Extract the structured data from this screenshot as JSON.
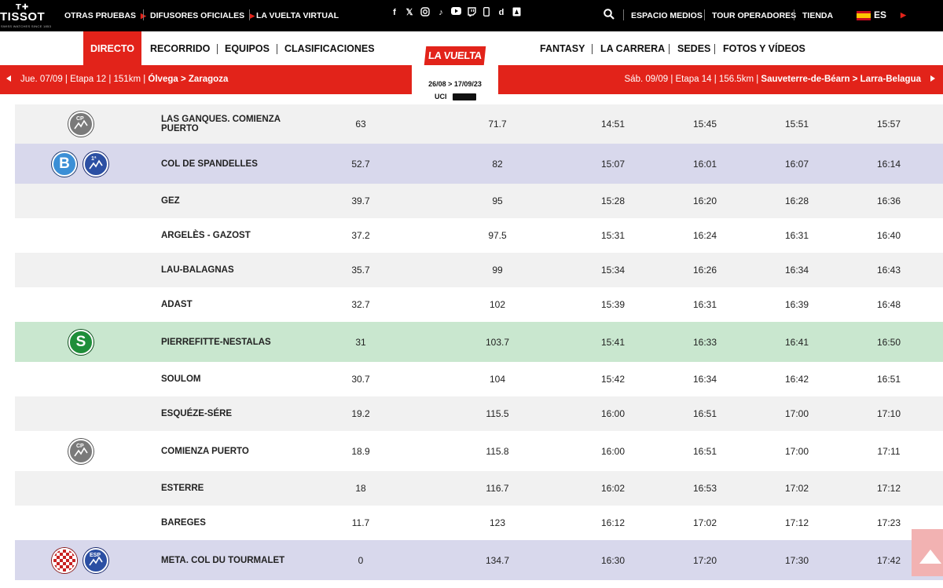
{
  "topbar": {
    "brand": "TISSOT",
    "brand_tag": "SWISS WATCHES SINCE 1853",
    "links": [
      "OTRAS PRUEBAS",
      "DIFUSORES OFICIALES",
      "LA VUELTA VIRTUAL"
    ],
    "social_icons": [
      "facebook-icon",
      "x-icon",
      "instagram-icon",
      "tiktok-icon",
      "youtube-icon",
      "twitch-icon",
      "mobile-icon",
      "dailymotion-icon",
      "strava-icon"
    ],
    "right_links": [
      "ESPACIO MEDIOS",
      "TOUR OPERADORES",
      "TIENDA"
    ],
    "language": "ES"
  },
  "nav": {
    "left": [
      "DIRECTO",
      "RECORRIDO",
      "EQUIPOS",
      "CLASIFICACIONES"
    ],
    "right": [
      "FANTASY",
      "LA CARRERA",
      "SEDES",
      "FOTOS Y VÍDEOS"
    ],
    "active": "DIRECTO"
  },
  "logo": {
    "name": "LA VUELTA",
    "dates": "26/08 > 17/09/23",
    "uci": "UCI"
  },
  "stagebar": {
    "prev_info": "Jue. 07/09 | Etapa 12 | 151km | ",
    "prev_route": "Ólvega > Zaragoza",
    "next_info": "Sáb. 09/09 | Etapa 14 | 156.5km | ",
    "next_route": "Sauveterre-de-Béarn > Larra-Belagua"
  },
  "rows": [
    {
      "style": "grey",
      "icons": [
        "cp"
      ],
      "name": "LAS GANQUES. COMIENZA PUERTO",
      "km_left": "63",
      "km_done": "71.7",
      "t1": "14:51",
      "t2": "15:45",
      "t3": "15:51",
      "t4": "15:57"
    },
    {
      "style": "purple",
      "icons": [
        "b",
        "cat1"
      ],
      "name": "COL DE SPANDELLES",
      "km_left": "52.7",
      "km_done": "82",
      "t1": "15:07",
      "t2": "16:01",
      "t3": "16:07",
      "t4": "16:14"
    },
    {
      "style": "grey",
      "icons": [],
      "name": "GEZ",
      "km_left": "39.7",
      "km_done": "95",
      "t1": "15:28",
      "t2": "16:20",
      "t3": "16:28",
      "t4": "16:36"
    },
    {
      "style": "white",
      "icons": [],
      "name": "ARGELÈS - GAZOST",
      "km_left": "37.2",
      "km_done": "97.5",
      "t1": "15:31",
      "t2": "16:24",
      "t3": "16:31",
      "t4": "16:40"
    },
    {
      "style": "grey",
      "icons": [],
      "name": "LAU-BALAGNAS",
      "km_left": "35.7",
      "km_done": "99",
      "t1": "15:34",
      "t2": "16:26",
      "t3": "16:34",
      "t4": "16:43"
    },
    {
      "style": "white",
      "icons": [],
      "name": "ADAST",
      "km_left": "32.7",
      "km_done": "102",
      "t1": "15:39",
      "t2": "16:31",
      "t3": "16:39",
      "t4": "16:48"
    },
    {
      "style": "green",
      "icons": [
        "s"
      ],
      "name": "PIERREFITTE-NESTALAS",
      "km_left": "31",
      "km_done": "103.7",
      "t1": "15:41",
      "t2": "16:33",
      "t3": "16:41",
      "t4": "16:50"
    },
    {
      "style": "white",
      "icons": [],
      "name": "SOULOM",
      "km_left": "30.7",
      "km_done": "104",
      "t1": "15:42",
      "t2": "16:34",
      "t3": "16:42",
      "t4": "16:51"
    },
    {
      "style": "grey",
      "icons": [],
      "name": "ESQUÉZE-SÉRE",
      "km_left": "19.2",
      "km_done": "115.5",
      "t1": "16:00",
      "t2": "16:51",
      "t3": "17:00",
      "t4": "17:10"
    },
    {
      "style": "white",
      "icons": [
        "cp"
      ],
      "name": "COMIENZA PUERTO",
      "km_left": "18.9",
      "km_done": "115.8",
      "t1": "16:00",
      "t2": "16:51",
      "t3": "17:00",
      "t4": "17:11"
    },
    {
      "style": "grey",
      "icons": [],
      "name": "ESTERRE",
      "km_left": "18",
      "km_done": "116.7",
      "t1": "16:02",
      "t2": "16:53",
      "t3": "17:02",
      "t4": "17:12"
    },
    {
      "style": "white",
      "icons": [],
      "name": "BAREGES",
      "km_left": "11.7",
      "km_done": "123",
      "t1": "16:12",
      "t2": "17:02",
      "t3": "17:12",
      "t4": "17:23"
    },
    {
      "style": "purple",
      "icons": [
        "finish",
        "esp"
      ],
      "name": "META. COL DU TOURMALET",
      "km_left": "0",
      "km_done": "134.7",
      "t1": "16:30",
      "t2": "17:20",
      "t3": "17:30",
      "t4": "17:42"
    }
  ],
  "badge_labels": {
    "cp": "CP",
    "b": "B",
    "cat1": "1ª",
    "s": "S",
    "esp": "ESP"
  },
  "colors": {
    "brand_red": "#e2231a",
    "purple_row": "#d8d8ec",
    "green_row": "#c9e7cf",
    "grey_row": "#f1f1f1"
  }
}
